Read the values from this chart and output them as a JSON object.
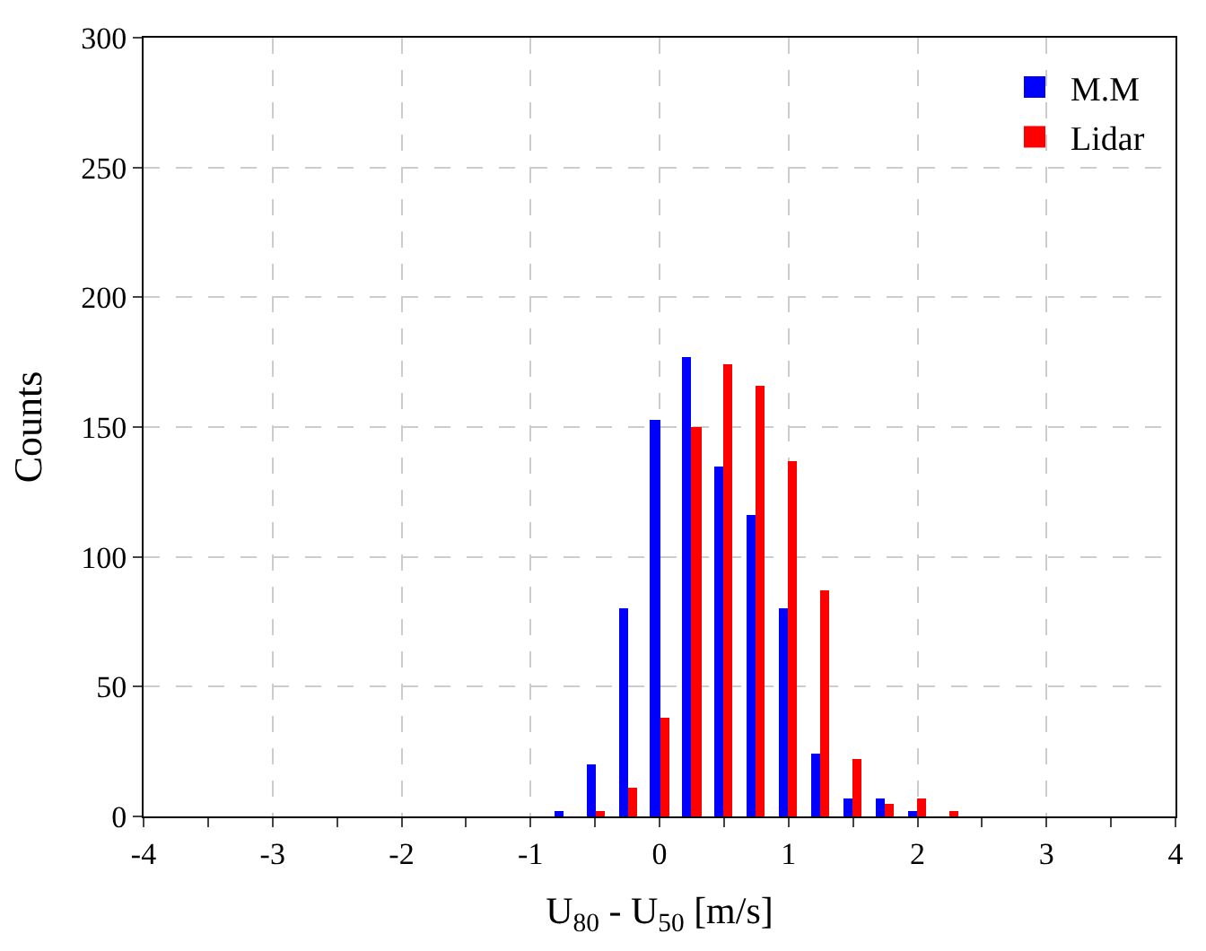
{
  "chart_data": {
    "type": "bar",
    "xlabel": "U$_{80}$ - U$_{50}$ [m/s]",
    "ylabel": "Counts",
    "x": [
      -0.75,
      -0.5,
      -0.25,
      0,
      0.25,
      0.5,
      0.75,
      1.0,
      1.25,
      1.5,
      1.75,
      2.0,
      2.25
    ],
    "series": [
      {
        "name": "M.M",
        "color": "#0000ff",
        "values": [
          2,
          20,
          80,
          153,
          177,
          135,
          116,
          80,
          24,
          7,
          7,
          2,
          0
        ]
      },
      {
        "name": "Lidar",
        "color": "#ff0000",
        "values": [
          0,
          2,
          11,
          38,
          150,
          174,
          166,
          137,
          87,
          22,
          5,
          7,
          2
        ]
      }
    ],
    "xlim": [
      -4,
      4
    ],
    "xticks": [
      -4,
      {
        "value": -3.5,
        "label": null
      },
      -3,
      {
        "value": -2.5,
        "label": null
      },
      -2,
      {
        "value": -1.5,
        "label": null
      },
      -1,
      {
        "value": -0.5,
        "label": null
      },
      0,
      {
        "value": 0.5,
        "label": null
      },
      1,
      {
        "value": 1.5,
        "label": null
      },
      2,
      {
        "value": 2.5,
        "label": null
      },
      3,
      {
        "value": 3.5,
        "label": null
      },
      4
    ],
    "ylim": [
      0,
      300
    ],
    "yticks": [
      0,
      50,
      100,
      150,
      200,
      250,
      300
    ],
    "grid": true,
    "legend": "top right"
  }
}
